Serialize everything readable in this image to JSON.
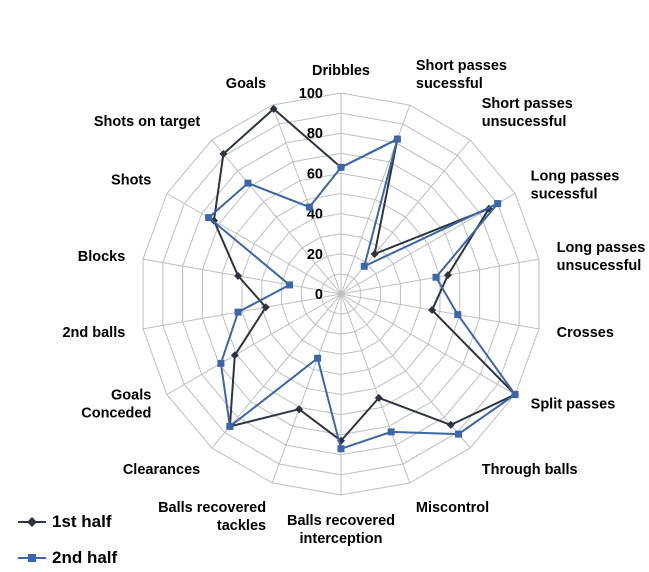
{
  "chart_data": {
    "type": "radar",
    "categories": [
      "Dribbles",
      "Short passes\nsucessful",
      "Short passes\nunsucessful",
      "Long passes\nsucessful",
      "Long passes\nunsucessful",
      "Crosses",
      "Split passes",
      "Through balls",
      "Miscontrol",
      "Balls recovered\ninterception",
      "Balls recovered\ntackles",
      "Clearances",
      "Goals\nConceded",
      "2nd balls",
      "Blocks",
      "Shots",
      "Shots on target",
      "Goals"
    ],
    "rlim": [
      0,
      100
    ],
    "ticks": [
      "0",
      "20",
      "40",
      "60",
      "80",
      "100"
    ],
    "grid": true,
    "legend": "bottom-left",
    "series": [
      {
        "name": "1st half",
        "color": "#2d3440",
        "marker": "diamond",
        "values": [
          63,
          82,
          26,
          85,
          54,
          46,
          100,
          85,
          55,
          73,
          61,
          86,
          61,
          38,
          52,
          73,
          91,
          98
        ]
      },
      {
        "name": "2nd half",
        "color": "#3c66a6",
        "marker": "square",
        "values": [
          63,
          82,
          18,
          90,
          48,
          59,
          100,
          91,
          73,
          77,
          34,
          86,
          69,
          52,
          26,
          76,
          72,
          46
        ]
      }
    ]
  }
}
